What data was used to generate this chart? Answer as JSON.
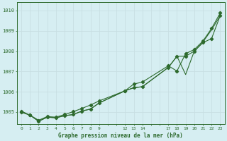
{
  "background_color": "#d6eef2",
  "grid_color": "#c8dfe3",
  "line_color": "#2d6a2d",
  "title": "Graphe pression niveau de la mer (hPa)",
  "ylim": [
    1004.4,
    1010.4
  ],
  "xlim": [
    -0.5,
    23.5
  ],
  "yticks": [
    1005,
    1006,
    1007,
    1008,
    1009,
    1010
  ],
  "xtick_positions": [
    0,
    1,
    2,
    3,
    4,
    5,
    6,
    7,
    8,
    9,
    10,
    11,
    12,
    13,
    14,
    15,
    16,
    17,
    18,
    19,
    20,
    21,
    22,
    23
  ],
  "xtick_labels": [
    "0",
    "1",
    "2",
    "3",
    "4",
    "5",
    "6",
    "7",
    "8",
    "9",
    "",
    "",
    "12",
    "13",
    "14",
    "",
    "",
    "17",
    "18",
    "19",
    "20",
    "21",
    "22",
    "23"
  ],
  "line1_x": [
    0,
    1,
    2,
    3,
    4,
    5,
    6,
    7,
    8,
    9,
    12,
    13,
    14,
    17,
    18,
    19,
    20,
    21,
    22,
    23
  ],
  "line1_y": [
    1005.0,
    1004.85,
    1004.55,
    1004.75,
    1004.72,
    1004.82,
    1004.88,
    1005.05,
    1005.15,
    1005.45,
    1006.05,
    1006.2,
    1006.25,
    1007.2,
    1007.75,
    1006.85,
    1008.0,
    1008.45,
    1009.05,
    1009.75
  ],
  "line2_x": [
    0,
    1,
    2,
    3,
    4,
    5,
    6,
    7,
    8,
    9,
    12,
    13,
    14,
    17,
    18,
    19,
    20,
    21,
    22,
    23
  ],
  "line2_y": [
    1005.0,
    1004.85,
    1004.55,
    1004.75,
    1004.72,
    1004.82,
    1004.88,
    1005.05,
    1005.15,
    1005.45,
    1006.05,
    1006.2,
    1006.25,
    1007.2,
    1007.75,
    1007.75,
    1008.0,
    1008.42,
    1008.62,
    1009.75
  ],
  "line3_x": [
    0,
    1,
    2,
    3,
    4,
    5,
    6,
    7,
    8,
    9,
    12,
    13,
    14,
    17,
    18,
    19,
    20,
    21,
    22,
    23
  ],
  "line3_y": [
    1005.05,
    1004.85,
    1004.6,
    1004.78,
    1004.75,
    1004.88,
    1005.02,
    1005.18,
    1005.35,
    1005.55,
    1006.05,
    1006.38,
    1006.48,
    1007.28,
    1007.02,
    1007.88,
    1008.08,
    1008.5,
    1009.12,
    1009.88
  ]
}
